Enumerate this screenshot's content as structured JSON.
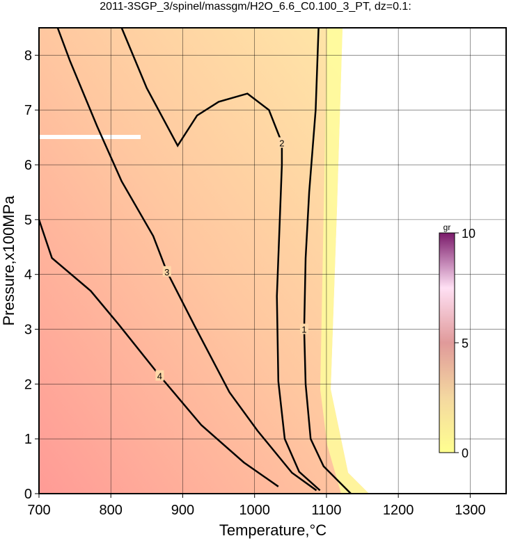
{
  "chart_data": {
    "type": "contour",
    "title": "2011-3SGP_3/spinel/massgm/H2O_6.6_C0.100_3_PT, dz=0.1:",
    "x_label": "Temperature,°C",
    "y_label": "Pressure,x100MPa",
    "xlim": [
      700,
      1350
    ],
    "ylim": [
      0,
      8.5
    ],
    "xticks": [
      700,
      800,
      900,
      1000,
      1100,
      1200,
      1300
    ],
    "yticks": [
      0,
      1,
      2,
      3,
      4,
      5,
      6,
      7,
      8
    ],
    "grid": true,
    "contours": [
      {
        "level": 1,
        "x": [
          1089,
          1085,
          1076,
          1071,
          1069,
          1071,
          1078,
          1096,
          1134
        ],
        "y": [
          8.5,
          7.0,
          5.5,
          4.3,
          3.0,
          2.0,
          1.0,
          0.5,
          0.0
        ]
      },
      {
        "level": 2,
        "x": [
          815,
          850,
          893,
          920,
          950,
          990,
          1020,
          1038,
          1038,
          1031,
          1033,
          1042,
          1062,
          1091
        ],
        "y": [
          8.5,
          7.4,
          6.35,
          6.9,
          7.15,
          7.3,
          7.0,
          6.4,
          6.0,
          3.6,
          2.05,
          1.0,
          0.4,
          0.06
        ]
      },
      {
        "level": 3,
        "x": [
          726,
          743,
          781,
          815,
          859,
          878,
          917,
          965,
          1004,
          1052,
          1086
        ],
        "y": [
          8.5,
          7.9,
          6.7,
          5.7,
          4.7,
          4.05,
          3.05,
          1.85,
          1.15,
          0.38,
          0.06
        ]
      },
      {
        "level": 4,
        "x": [
          700,
          718,
          772,
          810,
          868,
          926,
          985,
          1033
        ],
        "y": [
          5.0,
          4.3,
          3.7,
          3.1,
          2.15,
          1.25,
          0.57,
          0.13
        ]
      }
    ],
    "colorbar": {
      "label": "gr",
      "lim": [
        0,
        10
      ],
      "ticks": [
        0,
        5,
        10
      ]
    }
  }
}
